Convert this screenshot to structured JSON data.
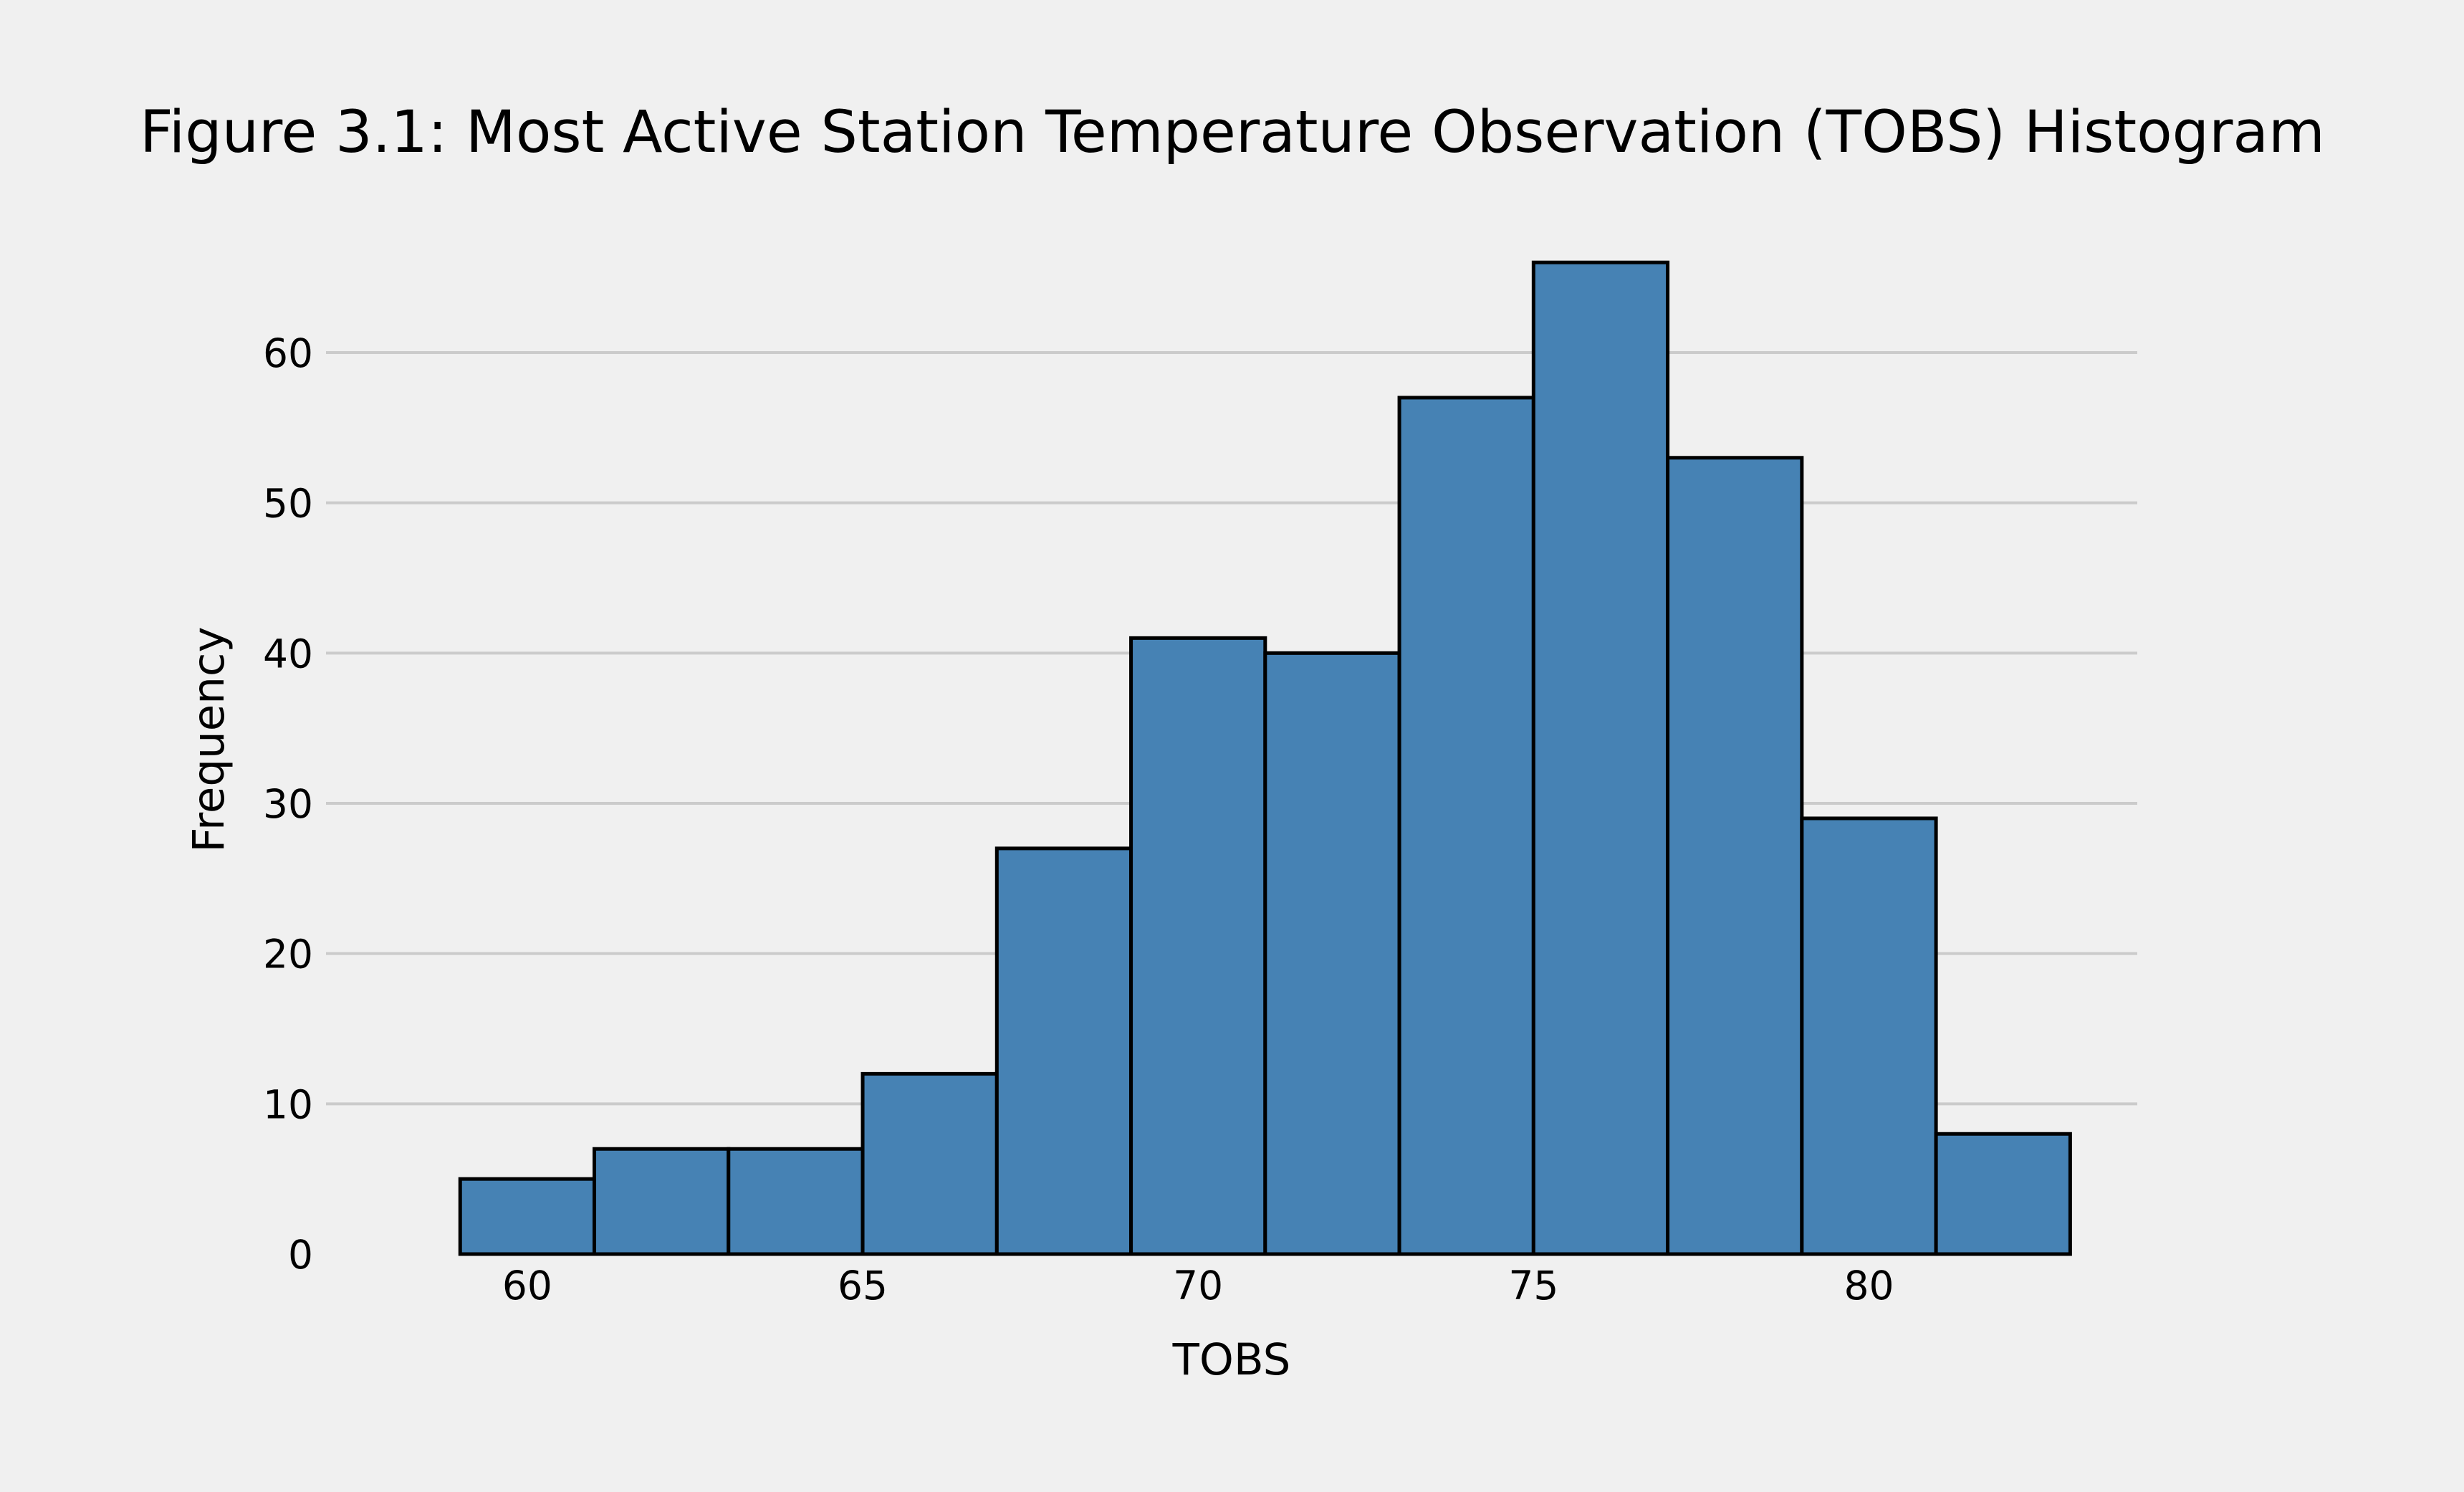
{
  "chart_data": {
    "type": "bar",
    "subtype": "histogram",
    "title": "Figure 3.1: Most Active Station Temperature Observation (TOBS) Histogram",
    "xlabel": "TOBS",
    "ylabel": "Frequency",
    "bin_edges": [
      59,
      61,
      63,
      65,
      67,
      69,
      71,
      73,
      75,
      77,
      79,
      81,
      83
    ],
    "values": [
      5,
      7,
      7,
      12,
      27,
      41,
      40,
      57,
      66,
      53,
      29,
      8
    ],
    "xlim": [
      57,
      84
    ],
    "ylim": [
      0,
      70
    ],
    "xticks": [
      60,
      65,
      70,
      75,
      80
    ],
    "yticks": [
      0,
      10,
      20,
      30,
      40,
      50,
      60
    ],
    "grid": "y-major",
    "legend": "none",
    "colors": {
      "background": "#f0f0f0",
      "bar_fill": "#4682b4",
      "bar_edge": "#000000",
      "grid": "#cbcbcb",
      "text": "#000000"
    }
  }
}
